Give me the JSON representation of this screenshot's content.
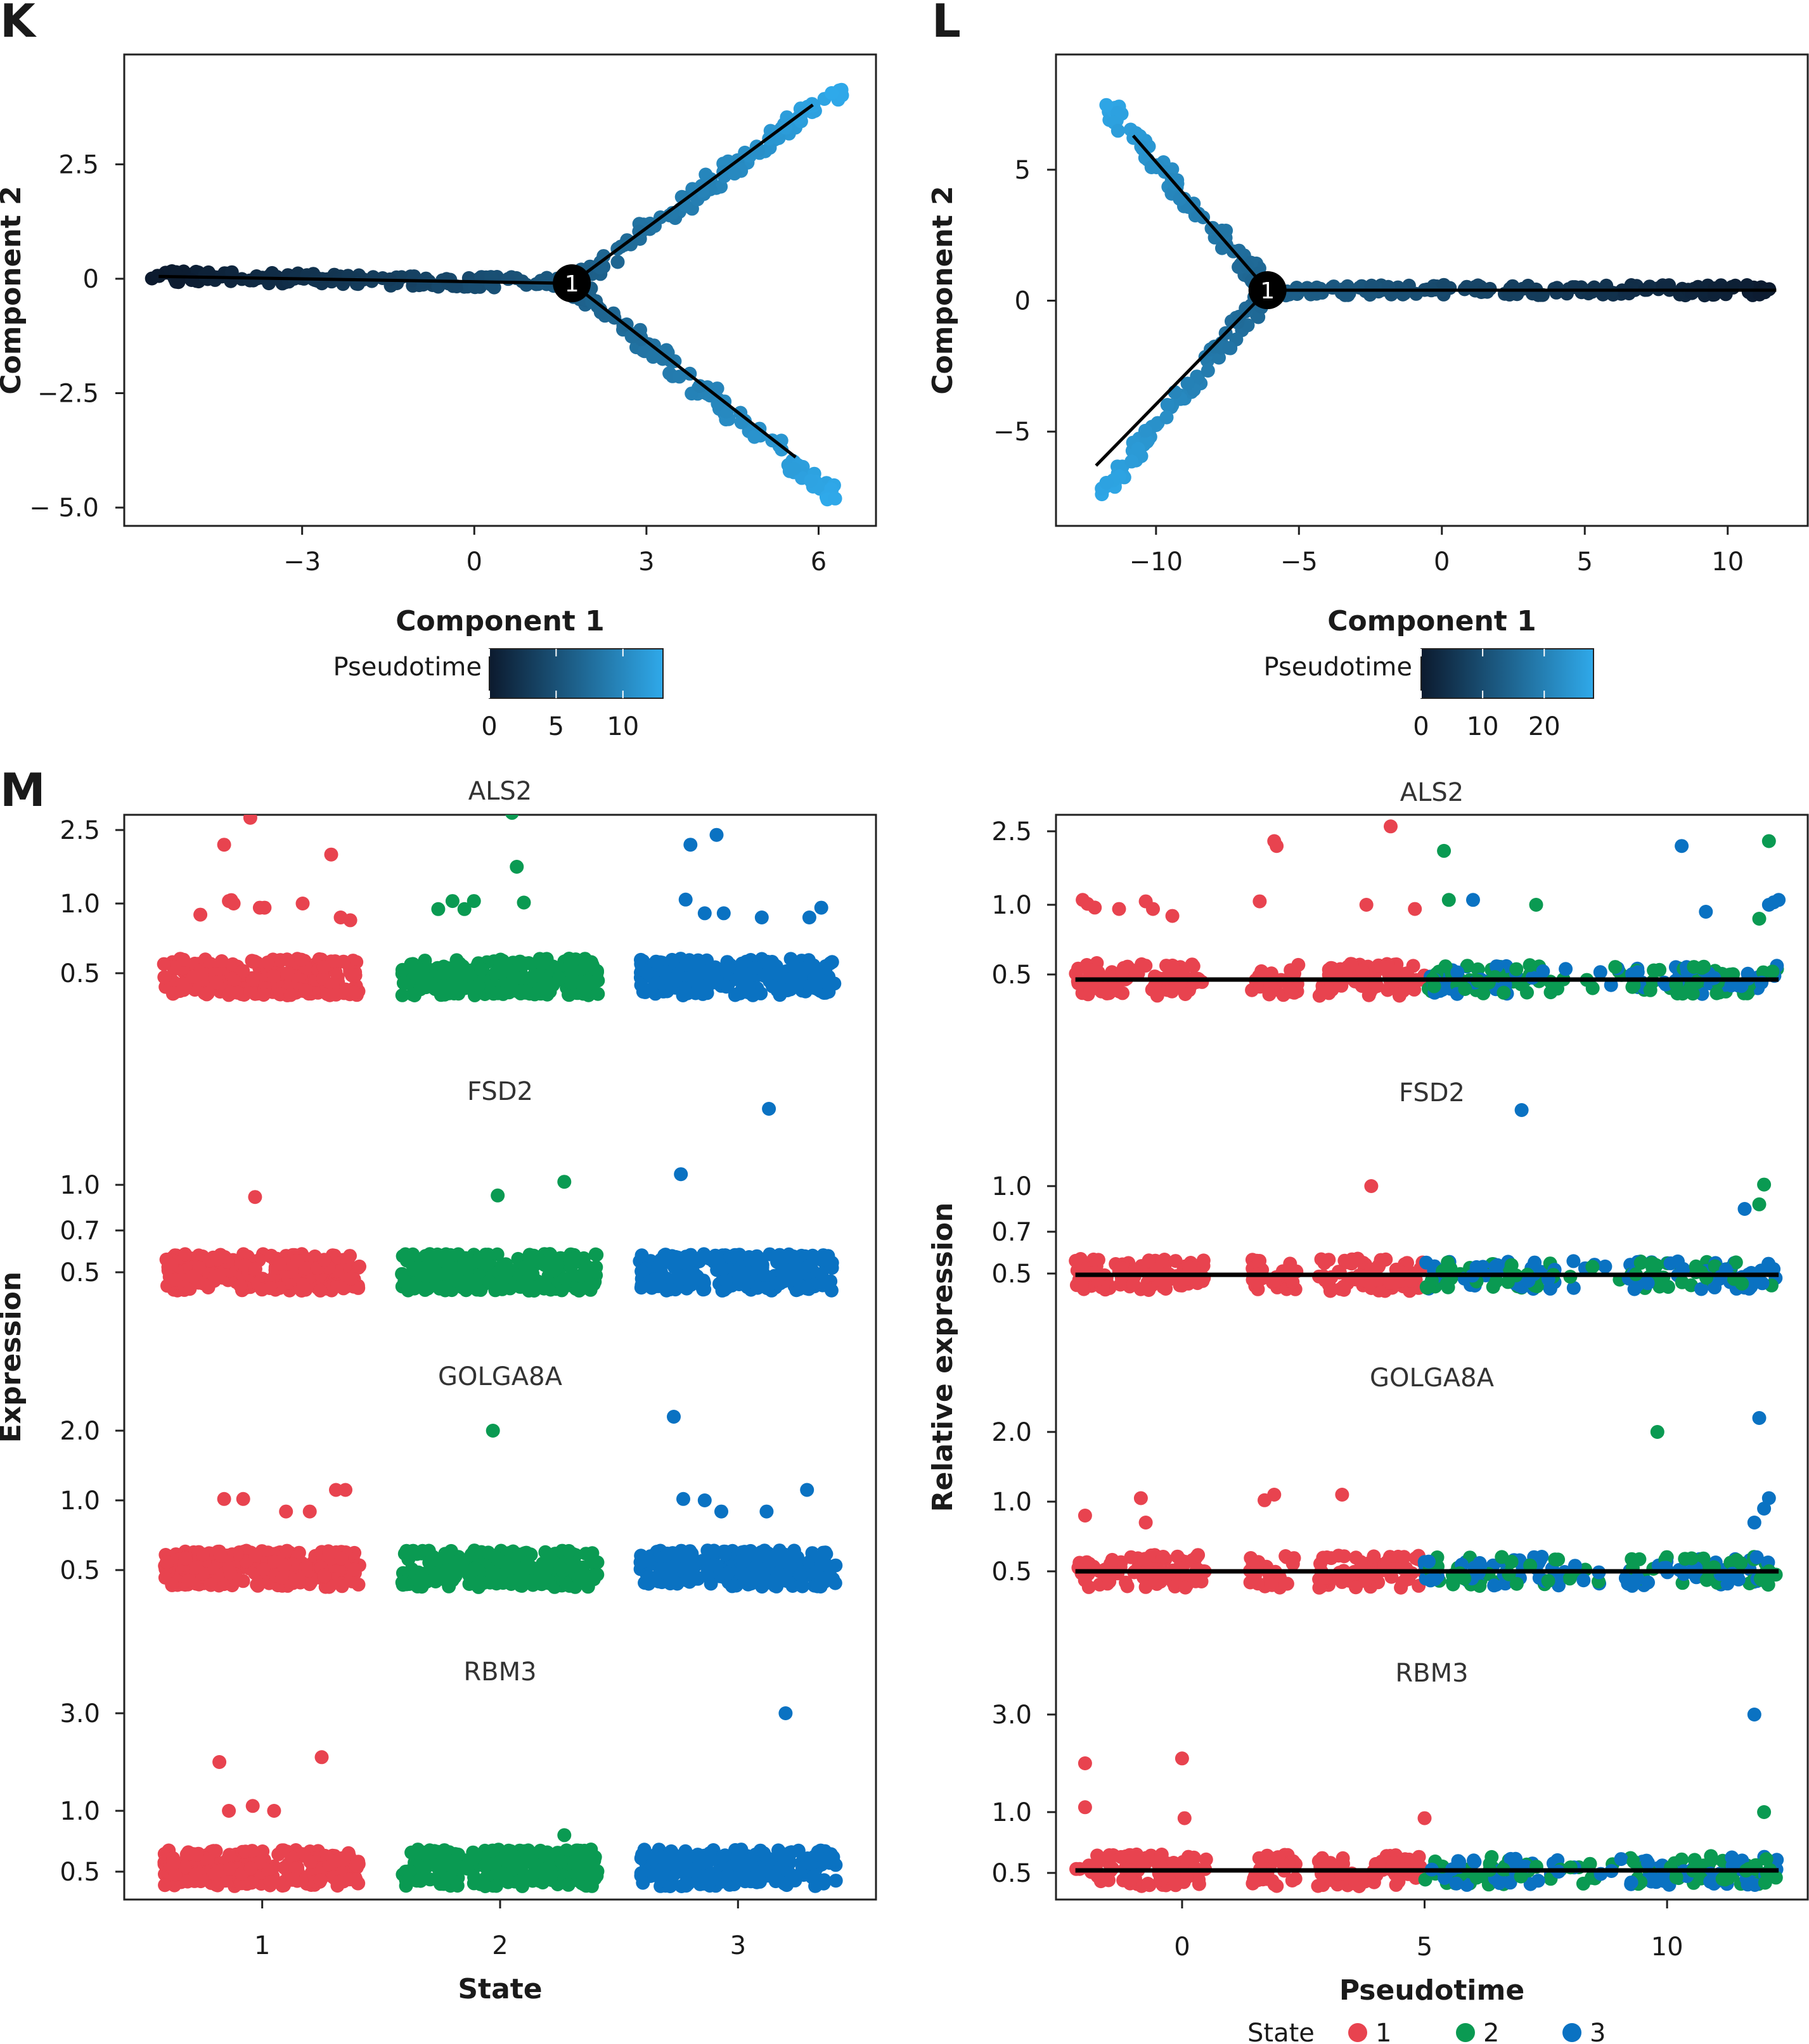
{
  "colors": {
    "state_1": "#e8434f",
    "state_2": "#0a9a52",
    "state_3": "#0a72c2",
    "pseudo_low": "#0c1a2e",
    "pseudo_high": "#2fa9ea",
    "trend_line": "#000000"
  },
  "chart_data": [
    {
      "panel": "K",
      "type": "scatter",
      "xlabel": "Component 1",
      "ylabel": "Component 2",
      "x_ticks": [
        "−3",
        "0",
        "3",
        "6"
      ],
      "y_ticks": [
        "2.5",
        "0",
        "−2.5",
        "− 5.0"
      ],
      "xlim": [
        -6.1,
        7.0
      ],
      "ylim": [
        -5.4,
        4.9
      ],
      "branch_point": {
        "label": "1",
        "x": 1.7,
        "y": -0.1
      },
      "trajectory": [
        [
          -5.5,
          0.05
        ],
        [
          1.7,
          -0.1
        ],
        [
          5.9,
          3.8
        ],
        [
          5.6,
          -3.9
        ]
      ],
      "color_scale": {
        "title": "Pseudotime",
        "ticks": [
          "0",
          "5",
          "10"
        ],
        "min": 0,
        "max": 13
      },
      "series": [
        {
          "segment": "stem",
          "x_from": -5.5,
          "y_from": 0.05,
          "x_to": 1.7,
          "y_to": -0.1,
          "n": 150,
          "jitter": 0.12,
          "pseudotime_from": 0,
          "pseudotime_to": 6
        },
        {
          "segment": "upper-branch",
          "x_from": 1.7,
          "y_from": -0.1,
          "x_to": 6.3,
          "y_to": 4.1,
          "n": 110,
          "jitter": 0.12,
          "pseudotime_from": 6,
          "pseudotime_to": 13
        },
        {
          "segment": "lower-branch",
          "x_from": 1.7,
          "y_from": -0.1,
          "x_to": 6.3,
          "y_to": -4.8,
          "n": 110,
          "jitter": 0.12,
          "pseudotime_from": 6,
          "pseudotime_to": 13
        }
      ]
    },
    {
      "panel": "L",
      "type": "scatter",
      "xlabel": "Component 1",
      "ylabel": "Component 2",
      "x_ticks": [
        "−10",
        "−5",
        "0",
        "5",
        "10"
      ],
      "y_ticks": [
        "5",
        "0",
        "−5"
      ],
      "xlim": [
        -13.5,
        12.8
      ],
      "ylim": [
        -8.6,
        9.4
      ],
      "branch_point": {
        "label": "1",
        "x": -6.1,
        "y": 0.4
      },
      "trajectory": [
        [
          -10.8,
          6.3
        ],
        [
          -6.1,
          0.4
        ],
        [
          11.7,
          0.4
        ],
        [
          -12.1,
          -6.3
        ]
      ],
      "color_scale": {
        "title": "Pseudotime",
        "ticks": [
          "0",
          "10",
          "20"
        ],
        "min": 0,
        "max": 28
      },
      "series": [
        {
          "segment": "stem",
          "x_from": 11.7,
          "y_from": 0.4,
          "x_to": -6.1,
          "y_to": 0.4,
          "n": 170,
          "jitter": 0.2,
          "pseudotime_from": 0,
          "pseudotime_to": 14
        },
        {
          "segment": "upper-branch",
          "x_from": -6.1,
          "y_from": 0.4,
          "x_to": -12.0,
          "y_to": 7.8,
          "n": 90,
          "jitter": 0.2,
          "pseudotime_from": 14,
          "pseudotime_to": 28
        },
        {
          "segment": "lower-branch",
          "x_from": -6.1,
          "y_from": 0.4,
          "x_to": -12.0,
          "y_to": -7.5,
          "n": 90,
          "jitter": 0.2,
          "pseudotime_from": 14,
          "pseudotime_to": 28
        }
      ]
    },
    {
      "panel": "M-left",
      "type": "scatter",
      "xlabel": "State",
      "ylabel": "Expression",
      "categories": [
        "1",
        "2",
        "3"
      ],
      "facets": [
        {
          "gene": "ALS2",
          "y_ticks": [
            "2.5",
            "1.0",
            "0.5"
          ],
          "outliers_by_state": [
            [
              [
                0.74,
                0.92
              ],
              [
                0.84,
                2.2
              ],
              [
                0.86,
                1.05
              ],
              [
                0.87,
                1.07
              ],
              [
                0.88,
                1.0
              ],
              [
                0.95,
                2.75
              ],
              [
                0.99,
                0.97
              ],
              [
                1.01,
                0.97
              ],
              [
                1.17,
                1.0
              ],
              [
                1.29,
                2.0
              ],
              [
                1.33,
                0.9
              ],
              [
                1.37,
                0.88
              ]
            ],
            [
              [
                1.74,
                0.96
              ],
              [
                1.8,
                1.05
              ],
              [
                1.85,
                0.96
              ],
              [
                1.89,
                1.05
              ],
              [
                2.05,
                2.85
              ],
              [
                2.07,
                1.75
              ],
              [
                2.1,
                1.02
              ]
            ],
            [
              [
                2.78,
                1.08
              ],
              [
                2.8,
                2.2
              ],
              [
                2.86,
                0.93
              ],
              [
                2.91,
                2.4
              ],
              [
                2.94,
                0.93
              ],
              [
                3.1,
                0.9
              ],
              [
                3.3,
                0.9
              ],
              [
                3.35,
                0.97
              ]
            ]
          ]
        },
        {
          "gene": "FSD2",
          "y_ticks": [
            "1.0",
            "0.7",
            "0.5"
          ],
          "outliers_by_state": [
            [
              [
                0.97,
                0.92
              ]
            ],
            [
              [
                1.99,
                0.93
              ],
              [
                2.27,
                1.02
              ]
            ],
            [
              [
                2.76,
                1.07
              ],
              [
                3.13,
                1.5
              ]
            ]
          ]
        },
        {
          "gene": "GOLGA8A",
          "y_ticks": [
            "2.0",
            "1.0",
            "0.5"
          ],
          "outliers_by_state": [
            [
              [
                0.84,
                1.02
              ],
              [
                0.92,
                1.02
              ],
              [
                1.1,
                0.92
              ],
              [
                1.2,
                0.92
              ],
              [
                1.31,
                1.15
              ],
              [
                1.35,
                1.15
              ]
            ],
            [
              [
                1.97,
                2.0
              ]
            ],
            [
              [
                2.73,
                2.2
              ],
              [
                2.77,
                1.02
              ],
              [
                2.86,
                1.0
              ],
              [
                2.93,
                0.92
              ],
              [
                3.12,
                0.92
              ],
              [
                3.29,
                1.15
              ]
            ]
          ]
        },
        {
          "gene": "RBM3",
          "y_ticks": [
            "3.0",
            "1.0",
            "0.5"
          ],
          "outliers_by_state": [
            [
              [
                0.82,
                2.0
              ],
              [
                0.86,
                1.0
              ],
              [
                0.96,
                1.1
              ],
              [
                1.05,
                1.0
              ],
              [
                1.25,
                2.1
              ]
            ],
            [
              [
                2.27,
                0.8
              ]
            ],
            [
              [
                3.2,
                3.0
              ]
            ]
          ]
        }
      ]
    },
    {
      "panel": "M-right",
      "type": "scatter",
      "xlabel": "Pseudotime",
      "ylabel": "Relative expression",
      "x_ticks": [
        "0",
        "5",
        "10"
      ],
      "xlim": [
        -2.6,
        12.9
      ],
      "state_ranges": [
        {
          "state": "1",
          "from": -2.2,
          "to": 5.0
        },
        {
          "state": "2/3",
          "from": 5.0,
          "to": 12.3
        }
      ],
      "facets": [
        {
          "gene": "ALS2",
          "y_ticks": [
            "2.5",
            "1.0",
            "0.5"
          ],
          "outliers": [
            [
              -2.05,
              1.1,
              1
            ],
            [
              -1.95,
              1.02,
              1
            ],
            [
              -1.8,
              0.98,
              1
            ],
            [
              -1.3,
              0.97,
              1
            ],
            [
              -0.75,
              1.07,
              1
            ],
            [
              -0.6,
              0.97,
              1
            ],
            [
              -0.2,
              0.92,
              1
            ],
            [
              1.6,
              1.07,
              1
            ],
            [
              1.9,
              2.3,
              1
            ],
            [
              1.95,
              2.2,
              1
            ],
            [
              3.8,
              1.0,
              1
            ],
            [
              4.3,
              2.6,
              1
            ],
            [
              4.8,
              0.97,
              1
            ],
            [
              5.4,
              2.1,
              2
            ],
            [
              5.5,
              1.1,
              2
            ],
            [
              7.3,
              1.0,
              2
            ],
            [
              11.9,
              0.9,
              2
            ],
            [
              12.1,
              2.3,
              2
            ],
            [
              6.0,
              1.1,
              3
            ],
            [
              10.3,
              2.2,
              3
            ],
            [
              10.8,
              0.95,
              3
            ],
            [
              12.1,
              1.0,
              3
            ],
            [
              12.2,
              1.05,
              3
            ],
            [
              12.3,
              1.1,
              3
            ]
          ]
        },
        {
          "gene": "FSD2",
          "y_ticks": [
            "1.0",
            "0.7",
            "0.5"
          ],
          "outliers": [
            [
              3.9,
              1.0,
              1
            ],
            [
              12.0,
              1.01,
              2
            ],
            [
              11.9,
              0.88,
              2
            ],
            [
              11.6,
              0.85,
              3
            ],
            [
              7.0,
              1.5,
              3
            ]
          ]
        },
        {
          "gene": "GOLGA8A",
          "y_ticks": [
            "2.0",
            "1.0",
            "0.5"
          ],
          "outliers": [
            [
              -2.0,
              0.9,
              1
            ],
            [
              -0.85,
              1.05,
              1
            ],
            [
              -0.75,
              0.85,
              1
            ],
            [
              1.7,
              1.02,
              1
            ],
            [
              1.9,
              1.1,
              1
            ],
            [
              3.3,
              1.1,
              1
            ],
            [
              9.8,
              2.0,
              2
            ],
            [
              11.9,
              2.2,
              3
            ],
            [
              11.8,
              0.85,
              3
            ],
            [
              12.0,
              0.95,
              3
            ],
            [
              12.1,
              1.05,
              3
            ]
          ]
        },
        {
          "gene": "RBM3",
          "y_ticks": [
            "3.0",
            "1.0",
            "0.5"
          ],
          "outliers": [
            [
              -2.0,
              2.0,
              1
            ],
            [
              -2.0,
              1.1,
              1
            ],
            [
              0.0,
              2.1,
              1
            ],
            [
              0.05,
              0.95,
              1
            ],
            [
              5.0,
              0.95,
              1
            ],
            [
              12.0,
              1.0,
              2
            ],
            [
              11.8,
              3.0,
              3
            ]
          ]
        }
      ],
      "legend": {
        "title": "State",
        "items": [
          "1",
          "2",
          "3"
        ]
      }
    }
  ],
  "panels": {
    "k": {
      "letter": "K"
    },
    "l": {
      "letter": "L"
    },
    "m": {
      "letter": "M"
    }
  }
}
